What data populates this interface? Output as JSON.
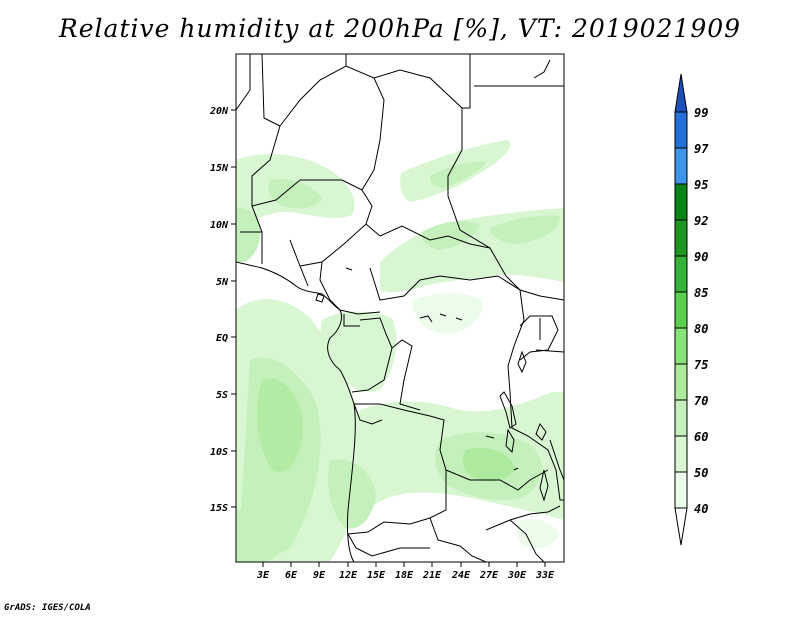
{
  "title": "Relative humidity at 200hPa [%], VT: 2019021909",
  "credit": "GrADS: IGES/COLA",
  "map": {
    "lon_ticks": [
      "3E",
      "6E",
      "9E",
      "12E",
      "15E",
      "18E",
      "21E",
      "24E",
      "27E",
      "30E",
      "33E"
    ],
    "lat_ticks": [
      "20N",
      "15N",
      "10N",
      "5N",
      "EQ",
      "5S",
      "10S",
      "15S"
    ]
  },
  "colorbar": {
    "labels": [
      "40",
      "50",
      "60",
      "70",
      "75",
      "80",
      "85",
      "90",
      "92",
      "95",
      "97",
      "99"
    ],
    "colors": [
      "#ffffff",
      "#ecfceb",
      "#d8f6d2",
      "#c4f0bc",
      "#aeea9e",
      "#8ae27a",
      "#5ad04e",
      "#36b23a",
      "#1e9626",
      "#0d8419",
      "#3f94e8",
      "#2470d8",
      "#1d4fb8"
    ]
  }
}
